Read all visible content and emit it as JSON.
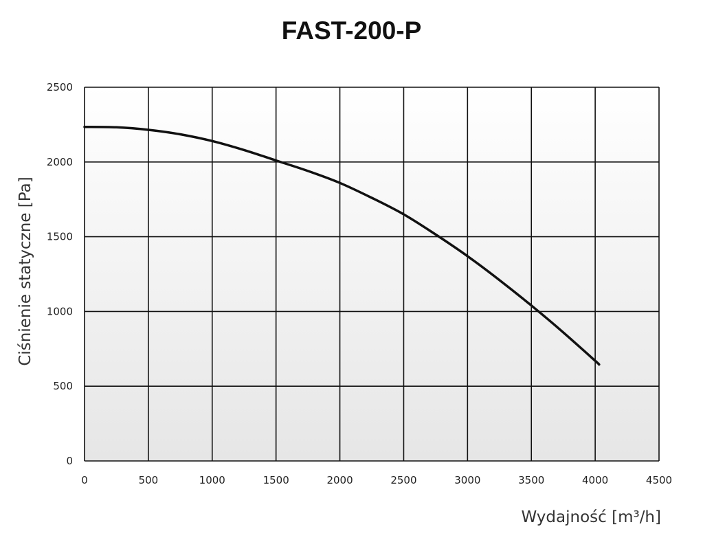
{
  "chart_data": {
    "type": "line",
    "title": "FAST-200-P",
    "xlabel": "Wydajność [m³/h]",
    "ylabel": "Ciśnienie statyczne  [Pa]",
    "xlim": [
      0,
      4500
    ],
    "ylim": [
      0,
      2500
    ],
    "xticks": [
      0,
      500,
      1000,
      1500,
      2000,
      2500,
      3000,
      3500,
      4000,
      4500
    ],
    "yticks": [
      0,
      500,
      1000,
      1500,
      2000,
      2500
    ],
    "xtick_labels": [
      "0",
      "500",
      "1000",
      "1500",
      "2000",
      "2500",
      "3000",
      "3500",
      "4000",
      "4500"
    ],
    "ytick_labels": [
      "0",
      "500",
      "1000",
      "1500",
      "2000",
      "2500"
    ],
    "grid": true,
    "series": [
      {
        "x": [
          0,
          250,
          500,
          750,
          1000,
          1250,
          1500,
          1750,
          2000,
          2250,
          2500,
          2750,
          3000,
          3250,
          3500,
          3750,
          4000,
          4030
        ],
        "y": [
          2235,
          2232,
          2215,
          2185,
          2140,
          2080,
          2010,
          1940,
          1860,
          1760,
          1650,
          1515,
          1370,
          1210,
          1040,
          860,
          670,
          645
        ]
      }
    ],
    "colors": {
      "line": "#111111",
      "grid": "#111111",
      "background_top": "#ffffff",
      "background_bottom": "#e6e6e6"
    }
  }
}
